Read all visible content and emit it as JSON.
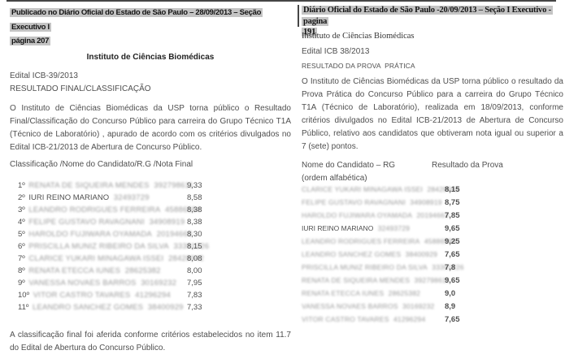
{
  "colors": {
    "highlight": "#c4c4c4",
    "heading_text": "#141414",
    "body_text": "#4f4f4f",
    "rule": "#454545",
    "redacted_text": "#9a9a9a"
  },
  "left_doc": {
    "header_line1": "Publicado no Diário Oficial do Estado de São Paulo – 28/09/2013 – Seção Executivo I",
    "header_line2": "página 207",
    "institution": "Instituto de Ciências Biomédicas",
    "edital": "Edital ICB-39/2013",
    "section_title": "RESULTADO FINAL/CLASSIFICAÇÃO",
    "body": "O Instituto de Ciências Biomédicas da USP torna público o Resultado Final/Classificação do Concurso Público para carreira do Grupo Técnico T1A (Técnico de Laboratório) , apurado de acordo com os critérios divulgados no Edital ICB-21/2013 de Abertura de Concurso Público.",
    "table_caption": "Classificação /Nome do Candidato/R.G /Nota Final",
    "rows": [
      {
        "rank": "1º",
        "name": "RENATA DE SIQUEIRA MENDES",
        "rg": "392798611",
        "score": "9,33"
      },
      {
        "rank": "2º",
        "name": "IURI REINO MARIANO",
        "rg": "32493729",
        "score": "8,58",
        "name_clear": true
      },
      {
        "rank": "3º",
        "name": "LEANDRO RODRIGUES FERREIRA",
        "rg": "45886584",
        "score": "8,38"
      },
      {
        "rank": "4º",
        "name": "FELIPE GUSTAVO RAVAGNANI",
        "rg": "34908919",
        "score": "8,38"
      },
      {
        "rank": "5º",
        "name": "HAROLDO FUJIWARA OYAMADA",
        "rg": "20194663",
        "score": "8,30"
      },
      {
        "rank": "6º",
        "name": "PRISCILLA MUNIZ RIBEIRO DA SILVA",
        "rg": "33391226",
        "score": "8,15"
      },
      {
        "rank": "7º",
        "name": "CLARICE YUKARI MINAGAWA ISSEI",
        "rg": "28428942",
        "score": "8,08"
      },
      {
        "rank": "8º",
        "name": "RENATA ETECCA IUNES",
        "rg": "28625382",
        "score": "8,00"
      },
      {
        "rank": "9º",
        "name": "VANESSA NOVAES BARROS",
        "rg": "30169232",
        "score": "7,95"
      },
      {
        "rank": "10º",
        "name": "VITOR CASTRO TAVARES",
        "rg": "41296294",
        "score": "7,83"
      },
      {
        "rank": "11º",
        "name": "LEANDRO SANCHEZ GOMES",
        "rg": "38400929",
        "score": "7,33"
      }
    ],
    "footer": "A classificação final foi aferida conforme critérios estabelecidos no item 11.7 do Edital de Abertura do Concurso Público."
  },
  "right_doc": {
    "header_line1": "Diário Oficial do Estado de São Paulo -20/09/2013 – Seção I Executivo -  pagina",
    "header_line2": "191",
    "institution": "Instituto de Ciências Biomédicas",
    "edital": "Edital ICB 38/2013",
    "section_title": "RESULTADO DA PROVA  PRÁTICA",
    "body": "O Instituto de Ciências Biomédicas da USP torna público o resultado da Prova Prática do Concurso Público para a carreira do Grupo Técnico T1A (Técnico de Laboratório), realizada em 18/09/2013, conforme critérios divulgados no Edital ICB-21/2013 de Abertura de Concurso Público, relativo aos candidatos que obtiveram nota igual ou superior a 7 (sete) pontos.",
    "col1_header_line1": "Nome do Candidato – RG",
    "col1_header_line2": "(ordem alfabética)",
    "col2_header": "Resultado da Prova",
    "rows": [
      {
        "name": "CLARICE YUKARI MINAGAWA ISSEI",
        "rg": "28428942",
        "score": "8,15"
      },
      {
        "name": "FELIPE GUSTAVO RAVAGNANI",
        "rg": "34908919",
        "score": "8,75"
      },
      {
        "name": "HAROLDO FUJIWARA OYAMADA",
        "rg": "20194663",
        "score": "7,85"
      },
      {
        "name": "IURI REINO MARIANO",
        "rg": "32493729",
        "score": "9,65",
        "name_clear": true
      },
      {
        "name": "LEANDRO RODRIGUES FERREIRA",
        "rg": "45886584",
        "score": "9,25"
      },
      {
        "name": "LEANDRO SANCHEZ GOMES",
        "rg": "38400929",
        "score": "7,65"
      },
      {
        "name": "PRISCILLA MUNIZ RIBEIRO DA SILVA",
        "rg": "33391226",
        "score": "7,8"
      },
      {
        "name": "RENATA DE SIQUEIRA MENDES",
        "rg": "392798611",
        "score": "9,65"
      },
      {
        "name": "RENATA ETECCA IUNES",
        "rg": "28625382",
        "score": "9,0"
      },
      {
        "name": "VANESSA NOVAES BARROS",
        "rg": "30169232",
        "score": "8,9"
      },
      {
        "name": "VITOR CASTRO TAVARES",
        "rg": "41296294",
        "score": "7,65"
      }
    ]
  }
}
